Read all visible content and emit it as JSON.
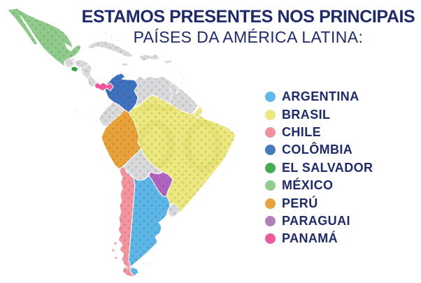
{
  "title": {
    "line1": "ESTAMOS PRESENTES NOS PRINCIPAIS",
    "line2": "PAÍSES DA AMÉRICA LATINA:",
    "color": "#1f2a6b"
  },
  "legend": {
    "items": [
      {
        "id": "argentina",
        "label": "ARGENTINA",
        "color": "#5fb9e8"
      },
      {
        "id": "brasil",
        "label": "BRASIL",
        "color": "#ece87d"
      },
      {
        "id": "chile",
        "label": "CHILE",
        "color": "#f0929d"
      },
      {
        "id": "colombia",
        "label": "COLÔMBIA",
        "color": "#4779bf"
      },
      {
        "id": "el-salvador",
        "label": "EL SALVADOR",
        "color": "#46ab52"
      },
      {
        "id": "mexico",
        "label": "MÉXICO",
        "color": "#92cc8e"
      },
      {
        "id": "peru",
        "label": "PERÚ",
        "color": "#e7a33d"
      },
      {
        "id": "paraguai",
        "label": "PARAGUAI",
        "color": "#b27fbb"
      },
      {
        "id": "panama",
        "label": "PANAMÁ",
        "color": "#ed5b9e"
      }
    ]
  },
  "map": {
    "highlighted_country_colors": {
      "mexico": "#8fcb8a",
      "el-salvador": "#2fa343",
      "panama": "#f0559c",
      "colombia": "#3e72be",
      "peru": "#e8a239",
      "brazil": "#ede87d",
      "paraguay": "#b164bf",
      "chile": "#f5949e",
      "argentina": "#5cb6e8"
    },
    "other_country_color": "#d9d9db",
    "watermark_color": "#e2dc69",
    "border_color": "#ffffff"
  }
}
